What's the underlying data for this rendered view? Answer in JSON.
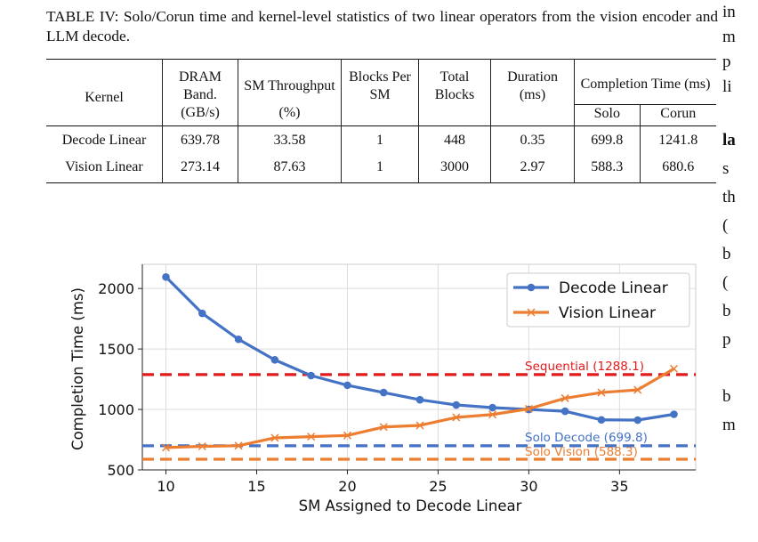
{
  "caption": "TABLE IV: Solo/Corun time and kernel-level statistics of two linear operators from the vision encoder and LLM decode.",
  "table": {
    "headers": [
      "Kernel",
      "DRAM Band.",
      "SM Throughput",
      "Blocks Per SM",
      "Total Blocks",
      "Duration (ms)",
      "Completion Time (ms)"
    ],
    "subheaders": [
      "",
      "(GB/s)",
      "(%)",
      "",
      "",
      "",
      "Solo",
      "Corun"
    ],
    "rows": [
      [
        "Decode Linear",
        "639.78",
        "33.58",
        "1",
        "448",
        "0.35",
        "699.8",
        "1241.8"
      ],
      [
        "Vision Linear",
        "273.14",
        "87.63",
        "1",
        "3000",
        "2.97",
        "588.3",
        "680.6"
      ]
    ]
  },
  "right_column_fragments": [
    "in",
    "m",
    "p",
    "li",
    "",
    "la",
    "s",
    "th",
    "(",
    "b",
    "(",
    "b",
    "p",
    "",
    "b",
    "m"
  ],
  "chart_data": {
    "type": "line",
    "xlabel": "SM Assigned to Decode Linear",
    "ylabel": "Completion Time (ms)",
    "xlim": [
      8.7,
      39.2
    ],
    "ylim": [
      500,
      2200
    ],
    "xticks": [
      10,
      15,
      20,
      25,
      30,
      35
    ],
    "yticks": [
      500,
      1000,
      1500,
      2000
    ],
    "grid": true,
    "legend": "top-right",
    "x": [
      10,
      12,
      14,
      16,
      18,
      20,
      22,
      24,
      26,
      28,
      30,
      32,
      34,
      36,
      38
    ],
    "series": [
      {
        "name": "Decode Linear",
        "color": "#4472c4",
        "marker": "circle",
        "values": [
          2095,
          1795,
          1580,
          1410,
          1280,
          1200,
          1140,
          1080,
          1037,
          1015,
          1000,
          985,
          914,
          912,
          960
        ]
      },
      {
        "name": "Vision Linear",
        "color": "#ed7d31",
        "marker": "x",
        "values": [
          685,
          695,
          700,
          765,
          775,
          785,
          855,
          868,
          934,
          958,
          1005,
          1093,
          1140,
          1162,
          1336
        ]
      }
    ],
    "reference_lines": [
      {
        "label": "Sequential (1288.1)",
        "value": 1288.1,
        "color": "#e31a1c"
      },
      {
        "label": "Solo Decode (699.8)",
        "value": 699.8,
        "color": "#4472c4"
      },
      {
        "label": "Solo Vision (588.3)",
        "value": 588.3,
        "color": "#ed7d31"
      }
    ]
  }
}
